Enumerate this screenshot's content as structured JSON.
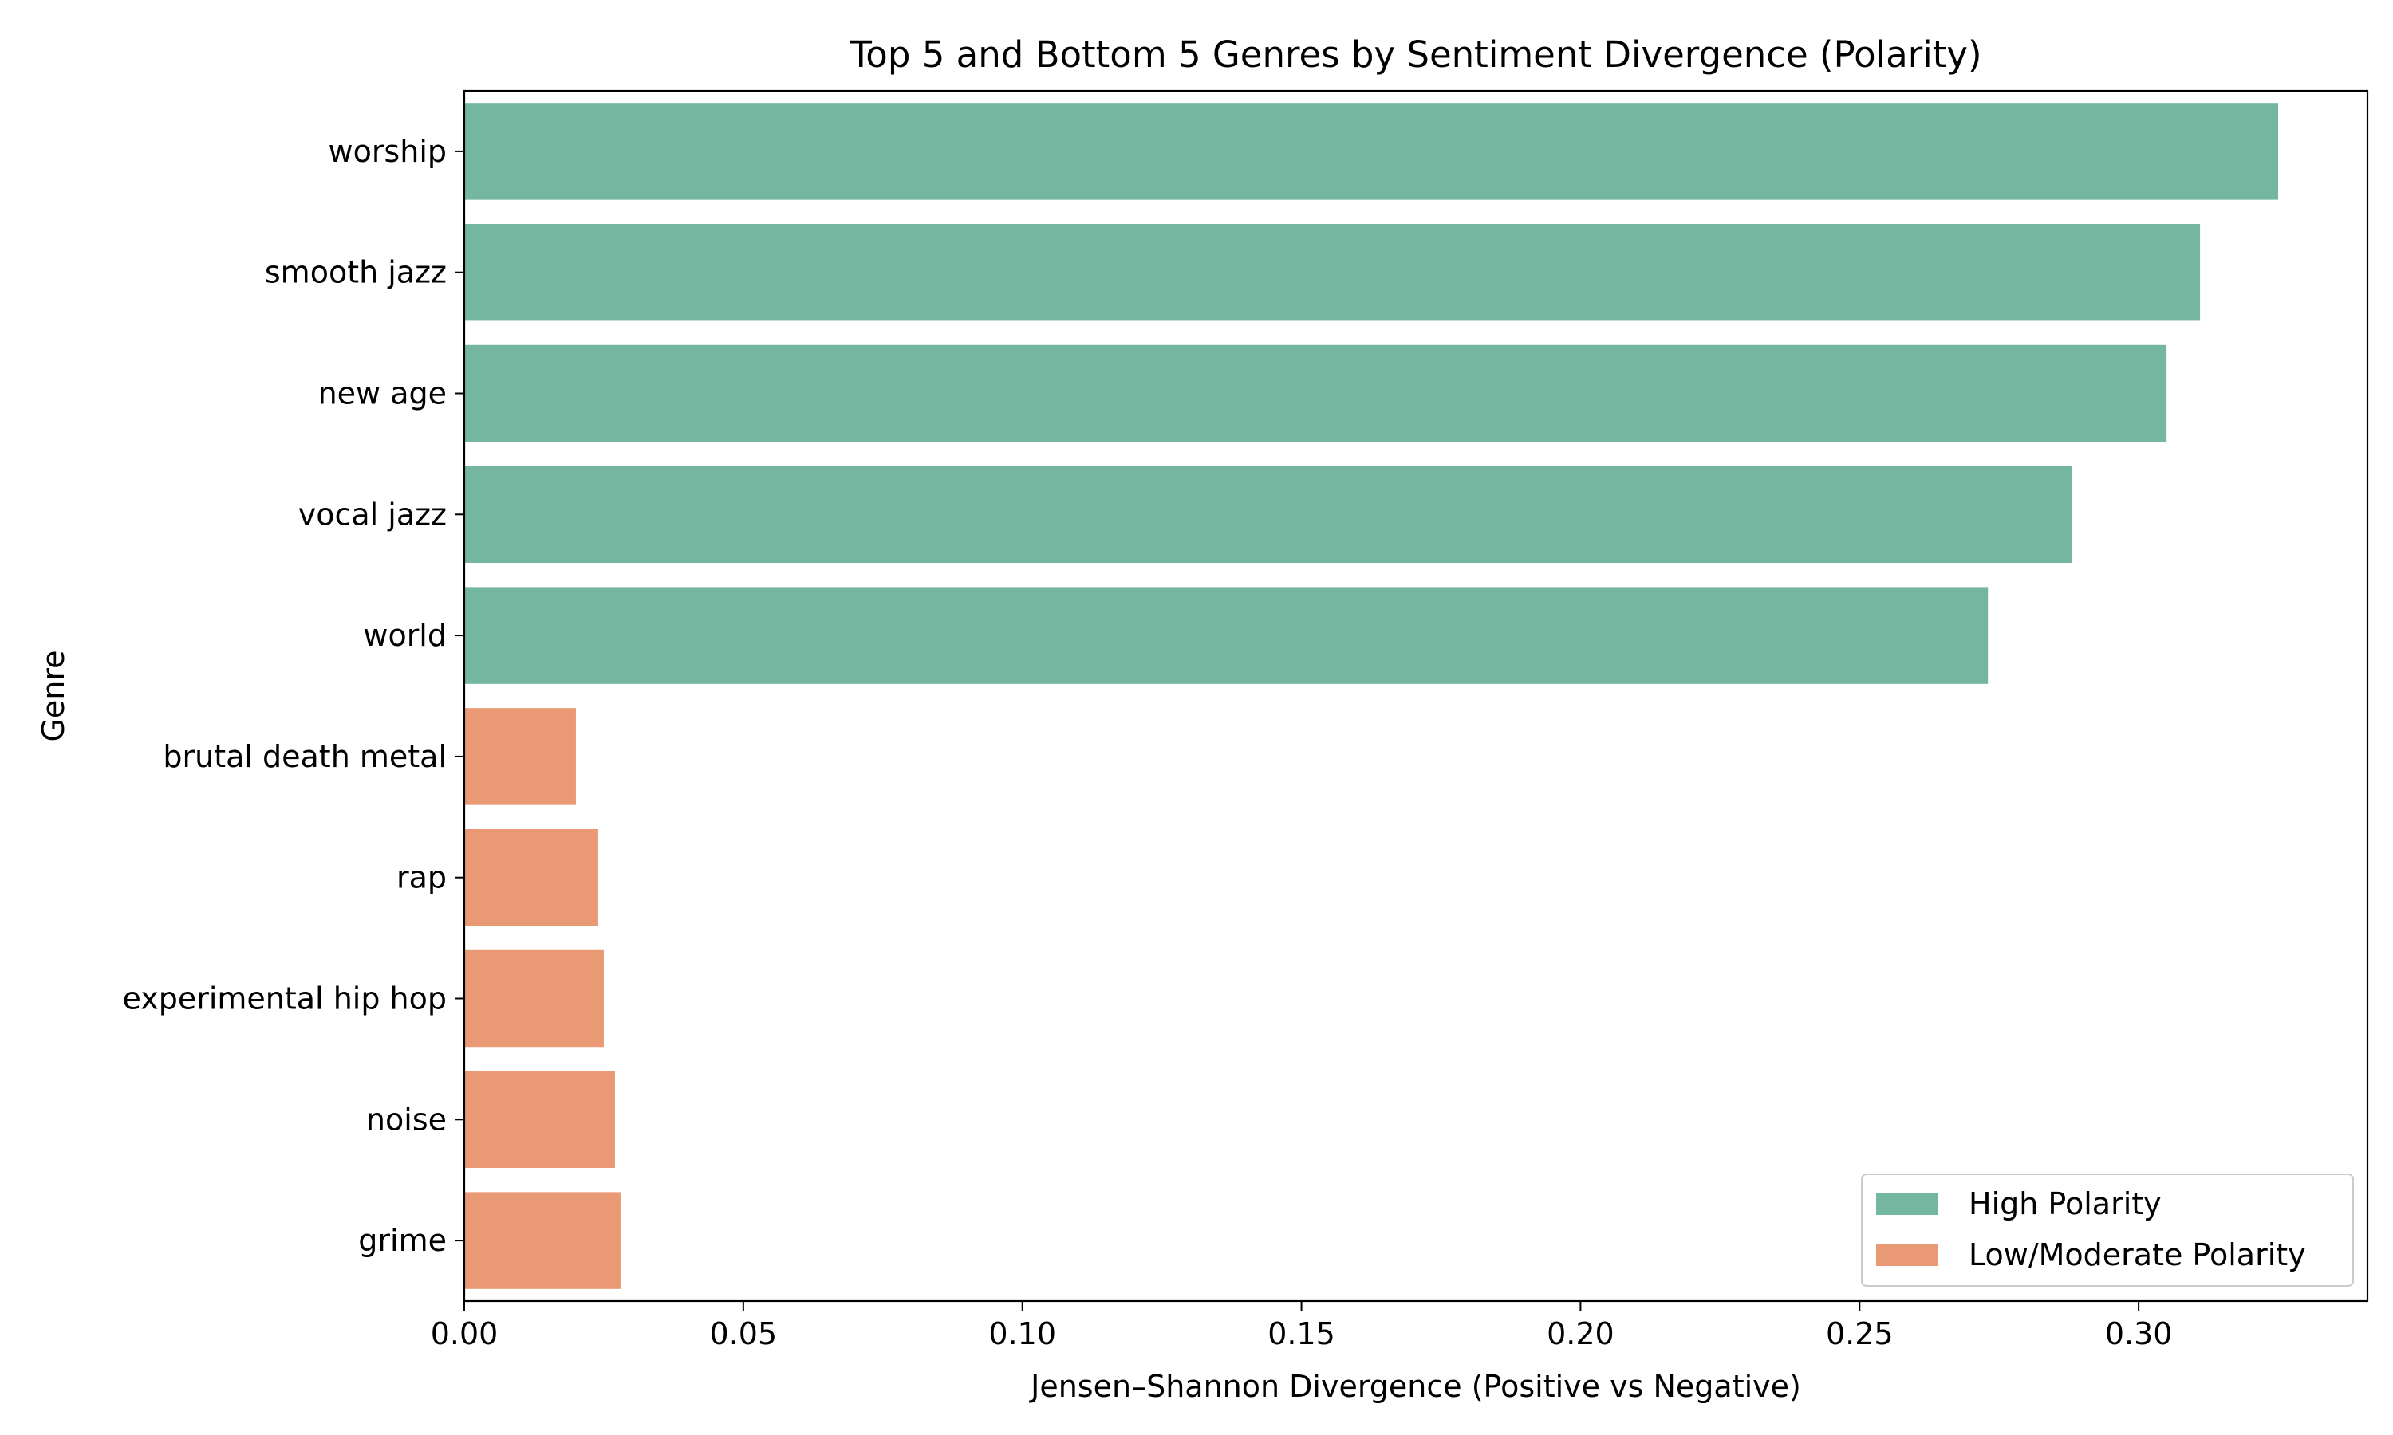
{
  "chart_data": {
    "type": "bar",
    "orientation": "horizontal",
    "title": "Top 5 and Bottom 5 Genres by Sentiment Divergence (Polarity)",
    "xlabel": "Jensen–Shannon Divergence (Positive vs Negative)",
    "ylabel": "Genre",
    "xlim": [
      0,
      0.341
    ],
    "xticks": [
      "0.00",
      "0.05",
      "0.10",
      "0.15",
      "0.20",
      "0.25",
      "0.30"
    ],
    "grid": false,
    "legend_position": "bottom-right",
    "categories": [
      "worship",
      "smooth jazz",
      "new age",
      "vocal jazz",
      "world",
      "brutal death metal",
      "rap",
      "experimental hip hop",
      "noise",
      "grime"
    ],
    "values": [
      0.325,
      0.311,
      0.305,
      0.288,
      0.273,
      0.02,
      0.024,
      0.025,
      0.027,
      0.028
    ],
    "groups": [
      "High Polarity",
      "High Polarity",
      "High Polarity",
      "High Polarity",
      "High Polarity",
      "Low/Moderate Polarity",
      "Low/Moderate Polarity",
      "Low/Moderate Polarity",
      "Low/Moderate Polarity",
      "Low/Moderate Polarity"
    ],
    "legend": [
      {
        "name": "High Polarity",
        "color": "#74b6a0"
      },
      {
        "name": "Low/Moderate Polarity",
        "color": "#e99a74"
      }
    ]
  }
}
